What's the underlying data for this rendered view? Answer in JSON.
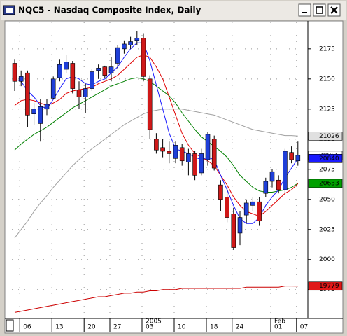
{
  "chart_data": {
    "type": "candlestick",
    "title": "NQC5 - Nasdaq Composite Index, Daily",
    "categories": [
      null,
      "06",
      null,
      null,
      null,
      null,
      "13",
      null,
      null,
      null,
      null,
      "20",
      null,
      null,
      null,
      "27",
      null,
      null,
      null,
      null,
      "03",
      null,
      null,
      null,
      null,
      "10",
      null,
      null,
      null,
      null,
      "18",
      null,
      null,
      null,
      "24",
      null,
      null,
      null,
      null,
      null,
      "01",
      null,
      null,
      null,
      "07"
    ],
    "periods": [
      null,
      null,
      null,
      null,
      null,
      null,
      null,
      null,
      null,
      null,
      null,
      null,
      null,
      null,
      null,
      null,
      null,
      null,
      null,
      null,
      "2005",
      null,
      null,
      null,
      null,
      null,
      null,
      null,
      null,
      null,
      null,
      null,
      null,
      null,
      null,
      null,
      null,
      null,
      null,
      null,
      "Feb",
      null,
      null,
      null,
      null
    ],
    "open": [
      2163,
      2148,
      2155,
      2121,
      2113,
      2125,
      2134,
      2151,
      2158,
      2163,
      2141,
      2135,
      2142,
      2157,
      2160,
      2155,
      2163,
      2175,
      2178,
      2182,
      2184,
      2150,
      2100,
      2093,
      2090,
      2084,
      2093,
      2081,
      2088,
      2072,
      2083,
      2100,
      2062,
      2052,
      2038,
      2022,
      2037,
      2045,
      2048,
      2055,
      2065,
      2066,
      2058,
      2089,
      2082
    ],
    "high": [
      2166,
      2157,
      2157,
      2130,
      2133,
      2133,
      2152,
      2166,
      2170,
      2165,
      2148,
      2146,
      2158,
      2162,
      2161,
      2168,
      2178,
      2182,
      2185,
      2190,
      2188,
      2153,
      2105,
      2100,
      2098,
      2098,
      2096,
      2092,
      2090,
      2092,
      2106,
      2103,
      2066,
      2060,
      2043,
      2040,
      2050,
      2052,
      2052,
      2068,
      2075,
      2070,
      2092,
      2094,
      2098
    ],
    "low": [
      2140,
      2144,
      2110,
      2112,
      2098,
      2120,
      2133,
      2148,
      2155,
      2138,
      2125,
      2122,
      2140,
      2150,
      2151,
      2148,
      2158,
      2171,
      2175,
      2178,
      2148,
      2100,
      2088,
      2085,
      2080,
      2080,
      2078,
      2070,
      2066,
      2070,
      2078,
      2074,
      2040,
      2031,
      2008,
      2012,
      2030,
      2040,
      2028,
      2052,
      2060,
      2055,
      2055,
      2080,
      2078
    ],
    "close": [
      2148,
      2152,
      2120,
      2125,
      2127,
      2129,
      2150,
      2162,
      2164,
      2142,
      2135,
      2142,
      2156,
      2159,
      2153,
      2160,
      2176,
      2179,
      2181,
      2184,
      2152,
      2108,
      2091,
      2090,
      2088,
      2095,
      2082,
      2088,
      2070,
      2088,
      2104,
      2076,
      2050,
      2035,
      2010,
      2035,
      2047,
      2048,
      2032,
      2065,
      2073,
      2058,
      2090,
      2083,
      2086.6
    ],
    "up_color": "#1f3fd8",
    "down_color": "#d01818",
    "series": [
      {
        "color": "#a0a0a0",
        "values": [
          2018,
          2025,
          2032,
          2040,
          2047,
          2053,
          2060,
          2066,
          2072,
          2078,
          2083,
          2088,
          2092,
          2096,
          2100,
          2104,
          2108,
          2112,
          2115,
          2118,
          2121,
          2123,
          2124,
          2125,
          2125,
          2125,
          2125,
          2124,
          2123,
          2122,
          2121,
          2120,
          2118,
          2116,
          2114,
          2112,
          2110,
          2108,
          2107,
          2106,
          2105,
          2104,
          2103,
          2103,
          2102.6
        ]
      },
      {
        "color": "#008000",
        "values": [
          2091,
          2096,
          2100,
          2104,
          2107,
          2110,
          2114,
          2118,
          2122,
          2126,
          2129,
          2132,
          2135,
          2138,
          2141,
          2144,
          2146,
          2148,
          2150,
          2151,
          2150,
          2148,
          2144,
          2140,
          2136,
          2130,
          2122,
          2115,
          2108,
          2102,
          2098,
          2094,
          2090,
          2085,
          2078,
          2070,
          2065,
          2060,
          2057,
          2056,
          2056,
          2057,
          2058,
          2060,
          2063.3
        ]
      },
      {
        "color": "#e00000",
        "values": [
          2128,
          2132,
          2133,
          2132,
          2130,
          2128,
          2130,
          2133,
          2138,
          2140,
          2141,
          2142,
          2143,
          2146,
          2148,
          2150,
          2153,
          2158,
          2163,
          2168,
          2170,
          2168,
          2160,
          2150,
          2135,
          2120,
          2105,
          2095,
          2088,
          2085,
          2082,
          2078,
          2070,
          2062,
          2052,
          2045,
          2040,
          2038,
          2036,
          2040,
          2045,
          2050,
          2055,
          2058,
          2063
        ]
      },
      {
        "color": "#1a1aff",
        "values": [
          2150,
          2148,
          2140,
          2135,
          2128,
          2125,
          2133,
          2142,
          2150,
          2152,
          2150,
          2146,
          2145,
          2148,
          2150,
          2155,
          2160,
          2168,
          2175,
          2180,
          2180,
          2165,
          2145,
          2125,
          2105,
          2092,
          2090,
          2088,
          2085,
          2083,
          2085,
          2083,
          2070,
          2058,
          2045,
          2034,
          2030,
          2030,
          2035,
          2045,
          2052,
          2058,
          2068,
          2076,
          2084
        ]
      },
      {
        "color": "#cc0000",
        "values": [
          1956,
          1957,
          1958,
          1959,
          1960,
          1961,
          1962,
          1963,
          1964,
          1965,
          1966,
          1967,
          1968,
          1969,
          1969,
          1970,
          1971,
          1972,
          1972,
          1973,
          1973,
          1974,
          1974,
          1975,
          1975,
          1975,
          1976,
          1976,
          1976,
          1976,
          1976,
          1976,
          1976,
          1976,
          1976,
          1976,
          1977,
          1977,
          1977,
          1977,
          1977,
          1977,
          1978,
          1978,
          1977.9
        ]
      }
    ],
    "ylim": [
      1951,
      2197
    ],
    "yticks": [
      1975,
      2000,
      2025,
      2050,
      2075,
      2100,
      2125,
      2150,
      2175
    ],
    "grid": true,
    "price_markers": [
      {
        "value": 2102.6,
        "label": "21026",
        "color": "#e0e0e0"
      },
      {
        "value": 2086.6,
        "label": "20866",
        "color": "#ffffff"
      },
      {
        "value": 2084.0,
        "label": "20840",
        "color": "#1a1aff"
      },
      {
        "value": 2063.3,
        "label": "20633",
        "color": "#00a000"
      },
      {
        "value": 1977.9,
        "label": "19779",
        "color": "#e01818"
      }
    ]
  }
}
